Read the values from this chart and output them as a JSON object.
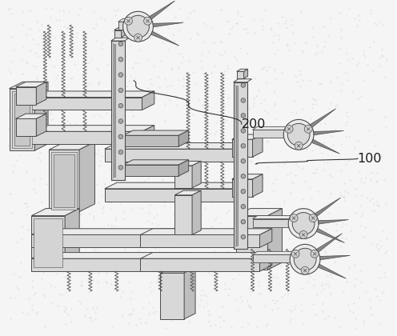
{
  "bg_color": "#f5f5f5",
  "ec": "#4a4a4a",
  "fc_light": "#ebebeb",
  "fc_mid": "#d8d8d8",
  "fc_dark": "#bebebe",
  "fc_darker": "#a8a8a8",
  "label_200": "200",
  "label_100": "100"
}
